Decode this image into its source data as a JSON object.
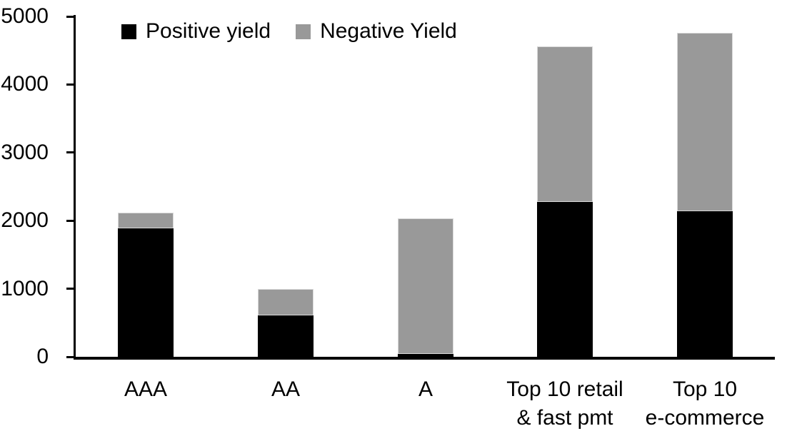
{
  "chart_data": {
    "type": "bar",
    "stacked": true,
    "title": "",
    "xlabel": "",
    "ylabel": "",
    "categories": [
      "AAA",
      "AA",
      "A",
      "Top 10 retail & fast pmt",
      "Top 10 e-commerce"
    ],
    "category_lines": [
      [
        "AAA"
      ],
      [
        "AA"
      ],
      [
        "A"
      ],
      [
        "Top 10 retail",
        "& fast pmt"
      ],
      [
        "Top 10",
        "e-commerce"
      ]
    ],
    "series": [
      {
        "name": "Positive yield",
        "color": "#000000",
        "values": [
          1890,
          610,
          40,
          2270,
          2140
        ]
      },
      {
        "name": "Negative Yield",
        "color": "#999999",
        "values": [
          230,
          390,
          1990,
          2290,
          2620
        ]
      }
    ],
    "totals": [
      2120,
      1000,
      2030,
      4560,
      4760
    ],
    "ylim": [
      0,
      5000
    ],
    "yticks": [
      0,
      1000,
      2000,
      3000,
      4000,
      5000
    ],
    "legend_position": "top-left-inside",
    "grid": false,
    "colors": {
      "positive": "#000000",
      "negative": "#999999",
      "axis": "#000000",
      "background": "#ffffff"
    }
  }
}
